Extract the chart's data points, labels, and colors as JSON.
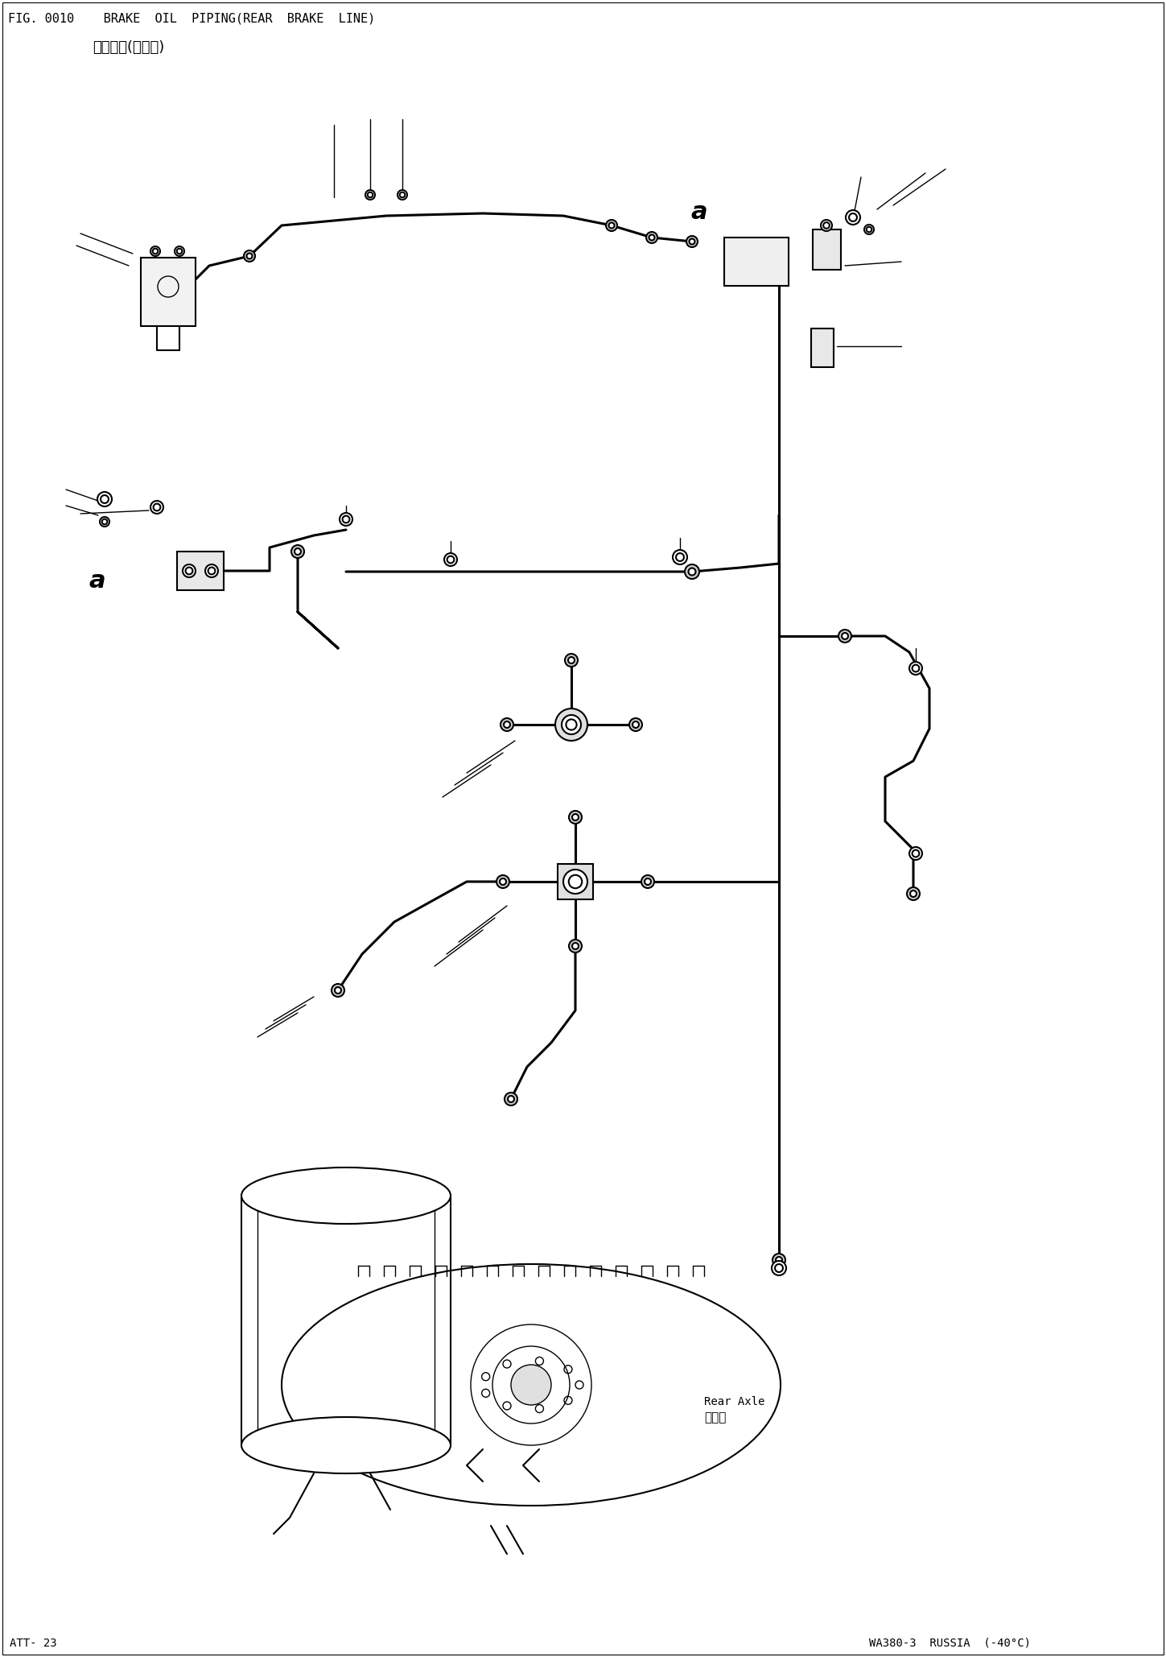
{
  "title_line1": "FIG. 0010    BRAKE  OIL  PIPING(REAR  BRAKE  LINE)",
  "title_line2": "制动管路(后制动)",
  "footer_left": "ATT- 23",
  "footer_right": "WA380-3  RUSSIA  (-40°C)",
  "label_rear_axle_en": "Rear Axle",
  "label_rear_axle_cn": "后车轴",
  "label_a": "a",
  "bg_color": "#ffffff",
  "line_color": "#000000",
  "fig_width": 14.49,
  "fig_height": 20.58,
  "dpi": 100
}
